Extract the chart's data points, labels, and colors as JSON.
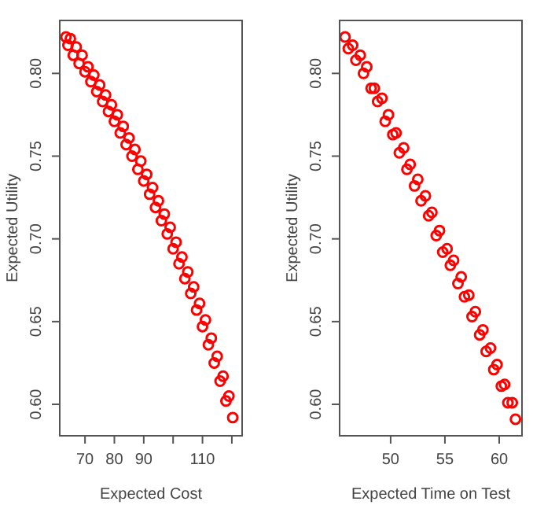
{
  "chart_data": [
    {
      "type": "scatter",
      "xlabel": "Expected Cost",
      "ylabel": "Expected Utility",
      "marker": "circle",
      "grid": false,
      "xlim": [
        61.4,
        123.5
      ],
      "ylim": [
        0.581,
        0.832
      ],
      "xticks": [
        70,
        80,
        90,
        {
          "value": 100,
          "label": null
        },
        110,
        {
          "value": 120,
          "label": null
        }
      ],
      "yticks": [
        {
          "value": 0.6,
          "label": "0.60"
        },
        {
          "value": 0.65,
          "label": "0.65"
        },
        {
          "value": 0.7,
          "label": "0.70"
        },
        {
          "value": 0.75,
          "label": "0.75"
        },
        {
          "value": 0.8,
          "label": "0.80"
        }
      ],
      "series": [
        {
          "color": "#ff0000",
          "x": [
            63.5,
            64.2,
            65,
            66,
            67,
            68,
            69,
            70,
            71,
            72,
            73,
            74,
            75,
            76,
            77,
            78,
            79,
            80,
            81,
            82,
            83,
            84,
            85,
            86,
            87,
            88,
            89,
            90,
            91,
            92,
            93,
            94,
            95,
            96,
            97,
            98,
            99,
            100,
            101,
            102,
            103,
            104,
            105,
            106,
            107,
            108,
            109,
            110,
            111,
            112,
            113,
            114,
            115,
            116,
            117,
            118,
            119,
            120.3
          ],
          "values": [
            0.822,
            0.817,
            0.821,
            0.811,
            0.816,
            0.806,
            0.811,
            0.801,
            0.804,
            0.795,
            0.799,
            0.789,
            0.793,
            0.783,
            0.787,
            0.777,
            0.781,
            0.771,
            0.775,
            0.764,
            0.768,
            0.757,
            0.761,
            0.75,
            0.754,
            0.742,
            0.747,
            0.735,
            0.739,
            0.727,
            0.731,
            0.719,
            0.723,
            0.711,
            0.715,
            0.703,
            0.707,
            0.694,
            0.698,
            0.685,
            0.689,
            0.676,
            0.68,
            0.667,
            0.671,
            0.657,
            0.661,
            0.647,
            0.651,
            0.636,
            0.64,
            0.625,
            0.629,
            0.614,
            0.617,
            0.602,
            0.605,
            0.592
          ]
        }
      ]
    },
    {
      "type": "scatter",
      "xlabel": "Expected Time on Test",
      "ylabel": "Expected Utility",
      "marker": "circle",
      "grid": false,
      "xlim": [
        45.3,
        62.1
      ],
      "ylim": [
        0.581,
        0.832
      ],
      "xticks": [
        50,
        55,
        60
      ],
      "yticks": [
        {
          "value": 0.6,
          "label": "0.60"
        },
        {
          "value": 0.65,
          "label": "0.65"
        },
        {
          "value": 0.7,
          "label": "0.70"
        },
        {
          "value": 0.75,
          "label": "0.75"
        },
        {
          "value": 0.8,
          "label": "0.80"
        }
      ],
      "series": [
        {
          "color": "#ff0000",
          "x": [
            45.8,
            46.1,
            46.5,
            46.8,
            47.2,
            47.5,
            47.8,
            48.2,
            48.5,
            48.8,
            49.2,
            49.5,
            49.8,
            50.2,
            50.5,
            50.8,
            51.2,
            51.5,
            51.8,
            52.2,
            52.5,
            52.8,
            53.2,
            53.5,
            53.8,
            54.2,
            54.5,
            54.8,
            55.2,
            55.5,
            55.8,
            56.2,
            56.5,
            56.8,
            57.2,
            57.5,
            57.8,
            58.2,
            58.5,
            58.8,
            59.2,
            59.5,
            59.8,
            60.2,
            60.5,
            60.8,
            61.2,
            61.5
          ],
          "values": [
            0.822,
            0.815,
            0.817,
            0.808,
            0.811,
            0.8,
            0.804,
            0.791,
            0.791,
            0.783,
            0.785,
            0.771,
            0.775,
            0.763,
            0.764,
            0.752,
            0.755,
            0.742,
            0.745,
            0.732,
            0.736,
            0.723,
            0.726,
            0.714,
            0.716,
            0.702,
            0.705,
            0.692,
            0.694,
            0.684,
            0.687,
            0.673,
            0.677,
            0.665,
            0.666,
            0.653,
            0.656,
            0.642,
            0.645,
            0.632,
            0.634,
            0.621,
            0.624,
            0.611,
            0.612,
            0.601,
            0.601,
            0.591
          ]
        }
      ]
    }
  ]
}
